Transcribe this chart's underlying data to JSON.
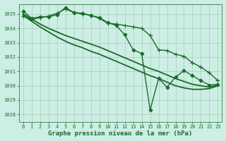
{
  "title": "Graphe pression niveau de la mer (hPa)",
  "bg_color": "#cceee4",
  "grid_color": "#aaccbb",
  "line_color": "#1a6b2a",
  "x_min": -0.5,
  "x_max": 23.5,
  "y_min": 1027.5,
  "y_max": 1035.7,
  "series": [
    {
      "x": [
        0,
        1,
        2,
        3,
        4,
        5,
        6,
        7,
        8,
        9,
        10,
        11,
        12,
        13,
        14,
        15,
        16,
        17,
        18,
        19,
        20,
        21,
        22,
        23
      ],
      "y": [
        1035.2,
        1034.7,
        1034.8,
        1034.8,
        1034.95,
        1035.45,
        1035.1,
        1035.05,
        1034.9,
        1034.75,
        1034.4,
        1034.2,
        1033.55,
        1032.5,
        1032.25,
        1028.3,
        1030.5,
        1029.9,
        1030.6,
        1031.05,
        1030.7,
        1030.35,
        1030.05,
        1030.1
      ],
      "marker": "D",
      "markersize": 2.5,
      "linewidth": 1.0
    },
    {
      "x": [
        0,
        1,
        2,
        3,
        4,
        5,
        6,
        7,
        8,
        9,
        10,
        11,
        12,
        13,
        14,
        15,
        16,
        17,
        18,
        19,
        20,
        21,
        22,
        23
      ],
      "y": [
        1034.85,
        1034.6,
        1034.75,
        1034.85,
        1035.05,
        1035.35,
        1035.1,
        1035.0,
        1034.9,
        1034.7,
        1034.35,
        1034.3,
        1034.2,
        1034.1,
        1034.0,
        1033.5,
        1032.5,
        1032.45,
        1032.2,
        1032.05,
        1031.6,
        1031.3,
        1030.9,
        1030.35
      ],
      "marker": "+",
      "markersize": 4,
      "linewidth": 1.0
    },
    {
      "x": [
        0,
        1,
        2,
        3,
        4,
        5,
        6,
        7,
        8,
        9,
        10,
        11,
        12,
        13,
        14,
        15,
        16,
        17,
        18,
        19,
        20,
        21,
        22,
        23
      ],
      "y": [
        1035.0,
        1034.65,
        1034.3,
        1034.0,
        1033.75,
        1033.5,
        1033.3,
        1033.1,
        1032.9,
        1032.7,
        1032.45,
        1032.2,
        1031.95,
        1031.7,
        1031.45,
        1031.2,
        1031.0,
        1030.75,
        1030.5,
        1030.3,
        1030.1,
        1030.0,
        1029.9,
        1030.05
      ],
      "marker": "None",
      "markersize": 0,
      "linewidth": 1.3
    },
    {
      "x": [
        0,
        1,
        2,
        3,
        4,
        5,
        6,
        7,
        8,
        9,
        10,
        11,
        12,
        13,
        14,
        15,
        16,
        17,
        18,
        19,
        20,
        21,
        22,
        23
      ],
      "y": [
        1034.9,
        1034.5,
        1034.1,
        1033.75,
        1033.4,
        1033.1,
        1032.85,
        1032.65,
        1032.4,
        1032.2,
        1031.95,
        1031.7,
        1031.45,
        1031.2,
        1030.95,
        1030.7,
        1030.5,
        1030.25,
        1030.0,
        1029.85,
        1029.75,
        1029.75,
        1029.8,
        1030.0
      ],
      "marker": "None",
      "markersize": 0,
      "linewidth": 1.3
    }
  ],
  "yticks": [
    1028,
    1029,
    1030,
    1031,
    1032,
    1033,
    1034,
    1035
  ],
  "xticks": [
    0,
    1,
    2,
    3,
    4,
    5,
    6,
    7,
    8,
    9,
    10,
    11,
    12,
    13,
    14,
    15,
    16,
    17,
    18,
    19,
    20,
    21,
    22,
    23
  ],
  "tick_fontsize": 5.0,
  "title_fontsize": 6.5
}
